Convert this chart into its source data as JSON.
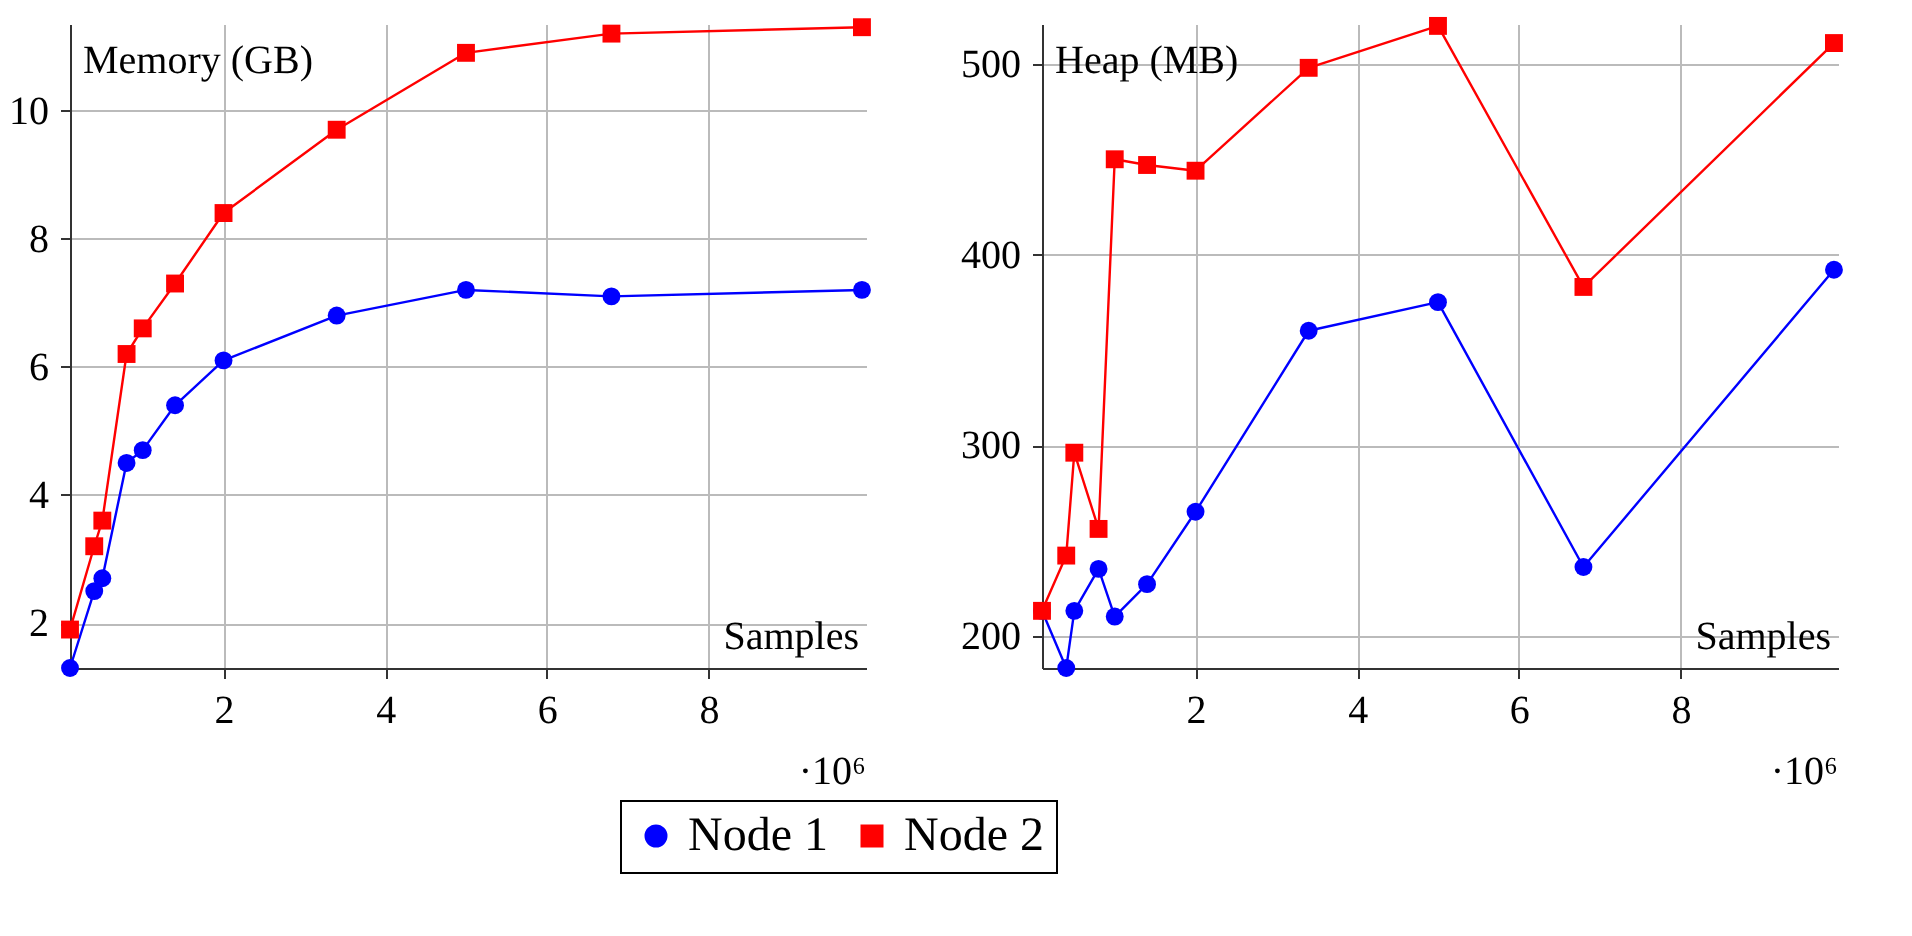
{
  "chart_data": [
    {
      "type": "line",
      "ylabel": "Memory (GB)",
      "xlabel": "Samples",
      "annotations": [
        "·10⁶"
      ],
      "x": [
        0.1,
        0.4,
        0.5,
        0.8,
        1,
        1.4,
        2,
        3.4,
        5,
        6.8,
        9.9
      ],
      "xlim": [
        0.1,
        9.95
      ],
      "xticks": [
        2,
        4,
        6,
        8
      ],
      "ylim": [
        1.3,
        11.35
      ],
      "yticks": [
        2,
        4,
        6,
        8,
        10
      ],
      "grid": true,
      "legend": "bottom",
      "line_style": "solid",
      "series": [
        {
          "name": "Node 1",
          "color": "#0000ff",
          "marker": "circle",
          "values": [
            1.3,
            2.5,
            2.7,
            4.5,
            4.7,
            5.4,
            6.1,
            6.8,
            7.2,
            7.1,
            7.2
          ]
        },
        {
          "name": "Node 2",
          "color": "#ff0000",
          "marker": "square",
          "values": [
            1.9,
            3.2,
            3.6,
            6.2,
            6.6,
            7.3,
            8.4,
            9.7,
            10.9,
            11.2,
            11.3
          ]
        }
      ]
    },
    {
      "type": "line",
      "ylabel": "Heap (MB)",
      "xlabel": "Samples",
      "annotations": [
        "·10⁶"
      ],
      "x": [
        0.1,
        0.4,
        0.5,
        0.8,
        1,
        1.4,
        2,
        3.4,
        5,
        6.8,
        9.9
      ],
      "xlim": [
        0.1,
        9.95
      ],
      "xticks": [
        2,
        4,
        6,
        8
      ],
      "ylim": [
        183,
        521
      ],
      "yticks": [
        200,
        300,
        400,
        500
      ],
      "grid": true,
      "legend": "bottom",
      "line_style": "solid",
      "series": [
        {
          "name": "Node 1",
          "color": "#0000ff",
          "marker": "circle",
          "values": [
            213,
            183,
            213,
            235,
            210,
            227,
            265,
            360,
            375,
            236,
            392
          ]
        },
        {
          "name": "Node 2",
          "color": "#ff0000",
          "marker": "square",
          "values": [
            213,
            242,
            296,
            256,
            450,
            447,
            444,
            498,
            520,
            383,
            511
          ]
        }
      ]
    }
  ]
}
